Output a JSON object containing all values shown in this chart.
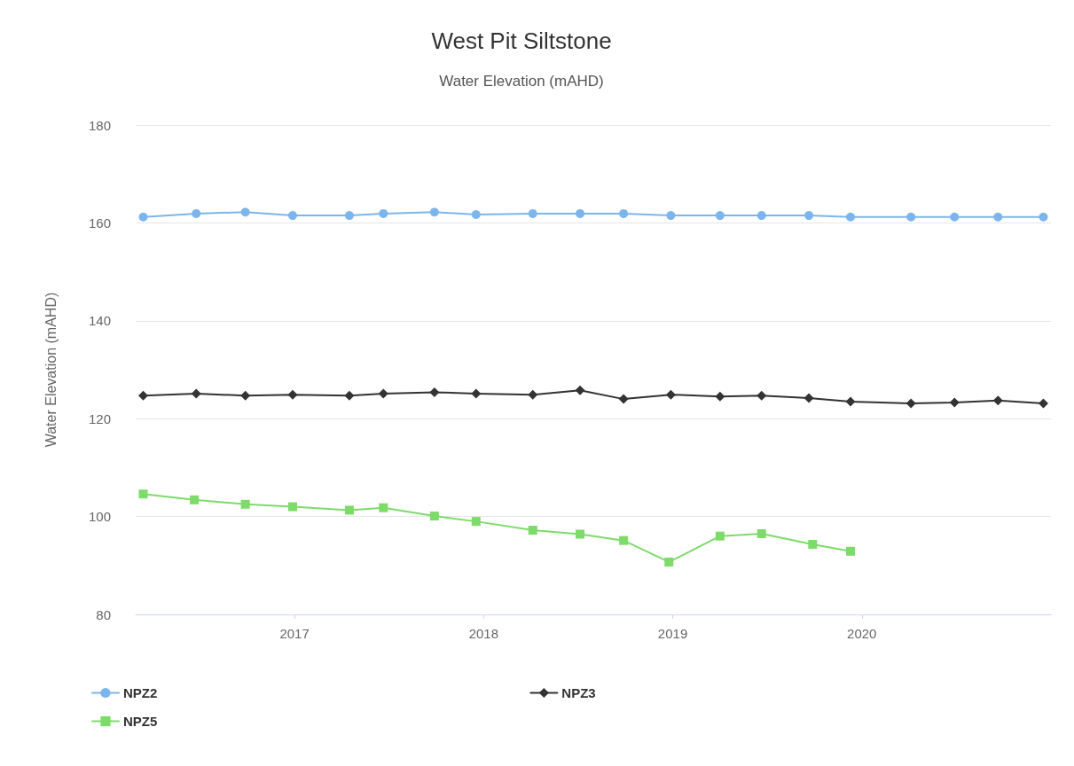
{
  "chart_data": {
    "type": "line",
    "title": "West Pit Siltstone",
    "subtitle": "Water Elevation (mAHD)",
    "ylabel": "Water Elevation (mAHD)",
    "xlim": [
      2016.16,
      2021.0
    ],
    "xticks": [
      2017,
      2018,
      2019,
      2020
    ],
    "ylim": [
      80,
      180
    ],
    "yticks": [
      80,
      100,
      120,
      140,
      160,
      180
    ],
    "grid": "y",
    "legend": "bottom left",
    "series": [
      {
        "name": "NPZ2",
        "color": "#7cb5ec",
        "marker": "circle",
        "x": [
          2016.2,
          2016.48,
          2016.74,
          2016.99,
          2017.29,
          2017.47,
          2017.74,
          2017.96,
          2018.26,
          2018.51,
          2018.74,
          2018.99,
          2019.25,
          2019.47,
          2019.72,
          2019.94,
          2020.26,
          2020.49,
          2020.72,
          2020.96
        ],
        "values": [
          161.2,
          161.9,
          162.2,
          161.5,
          161.5,
          161.9,
          162.2,
          161.7,
          161.9,
          161.9,
          161.9,
          161.5,
          161.5,
          161.5,
          161.5,
          161.2,
          161.2,
          161.2,
          161.2,
          161.2
        ]
      },
      {
        "name": "NPZ3",
        "color": "#333333",
        "marker": "diamond",
        "x": [
          2016.2,
          2016.48,
          2016.74,
          2016.99,
          2017.29,
          2017.47,
          2017.74,
          2017.96,
          2018.26,
          2018.51,
          2018.74,
          2018.99,
          2019.25,
          2019.47,
          2019.72,
          2019.94,
          2020.26,
          2020.49,
          2020.72,
          2020.96
        ],
        "values": [
          124.7,
          125.1,
          124.7,
          124.9,
          124.7,
          125.1,
          125.4,
          125.1,
          124.9,
          125.8,
          124.0,
          124.9,
          124.5,
          124.7,
          124.2,
          123.5,
          123.1,
          123.3,
          123.7,
          123.1
        ]
      },
      {
        "name": "NPZ5",
        "color": "#7ddb6a",
        "marker": "square",
        "x": [
          2016.2,
          2016.47,
          2016.74,
          2016.99,
          2017.29,
          2017.47,
          2017.74,
          2017.96,
          2018.26,
          2018.51,
          2018.74,
          2018.98,
          2019.25,
          2019.47,
          2019.74,
          2019.94
        ],
        "values": [
          104.6,
          103.4,
          102.5,
          102.0,
          101.3,
          101.8,
          100.1,
          99.0,
          97.2,
          96.4,
          95.1,
          90.7,
          96.0,
          96.5,
          94.3,
          92.9
        ]
      }
    ]
  }
}
